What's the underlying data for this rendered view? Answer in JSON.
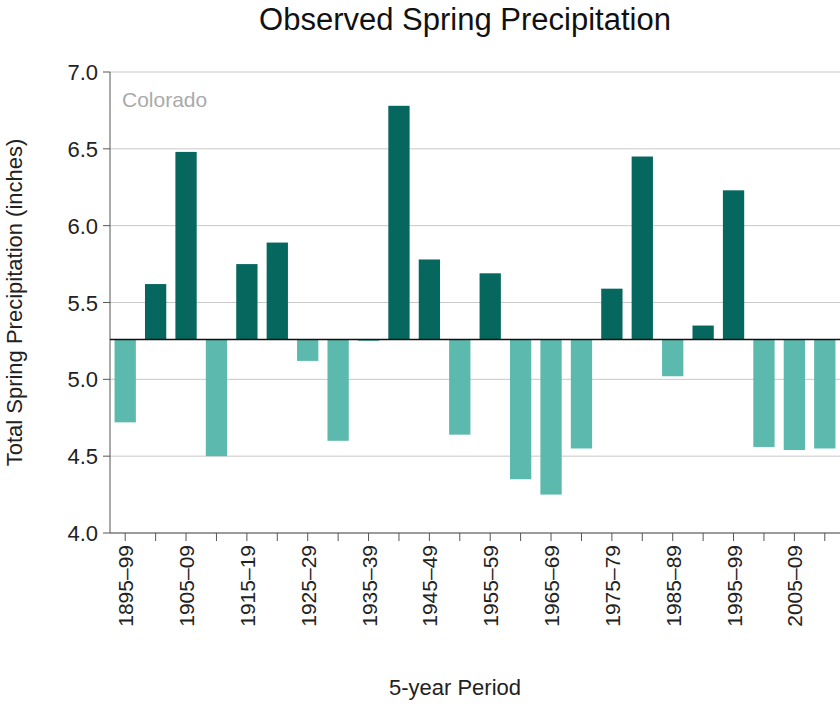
{
  "chart_data": {
    "type": "bar",
    "title": "Observed Spring Precipitation",
    "annotation": "Colorado",
    "x_label": "5-year Period",
    "y_label": "Total Spring Precipitation (inches)",
    "categories": [
      "1895–99",
      null,
      "1905–09",
      null,
      "1915–19",
      null,
      "1925–29",
      null,
      "1935–39",
      null,
      "1945–49",
      null,
      "1955–59",
      null,
      "1965–69",
      null,
      "1975–79",
      null,
      "1985–89",
      null,
      "1995–99",
      null,
      "2005–09",
      null
    ],
    "values": [
      4.72,
      5.62,
      6.48,
      4.5,
      5.75,
      5.89,
      5.12,
      4.6,
      5.25,
      6.78,
      5.78,
      4.64,
      5.69,
      4.35,
      4.25,
      4.55,
      5.59,
      6.45,
      5.02,
      5.35,
      6.23,
      4.56,
      4.54,
      4.55
    ],
    "colors": [
      "#5bb9ad",
      "#05675d",
      "#05675d",
      "#5bb9ad",
      "#05675d",
      "#05675d",
      "#5bb9ad",
      "#5bb9ad",
      "#5bb9ad",
      "#05675d",
      "#05675d",
      "#5bb9ad",
      "#05675d",
      "#5bb9ad",
      "#5bb9ad",
      "#5bb9ad",
      "#05675d",
      "#05675d",
      "#5bb9ad",
      "#05675d",
      "#05675d",
      "#5bb9ad",
      "#5bb9ad",
      "#5bb9ad"
    ],
    "reference_line": 5.26,
    "ylim": [
      4.0,
      7.0
    ],
    "yticks": [
      {
        "value": 4.0,
        "label": "4.0"
      },
      4.5,
      {
        "value": 5.0,
        "label": "5.0"
      },
      5.5,
      {
        "value": 6.0,
        "label": "6.0"
      },
      6.5,
      {
        "value": 7.0,
        "label": "7.0"
      }
    ],
    "grid": true
  }
}
